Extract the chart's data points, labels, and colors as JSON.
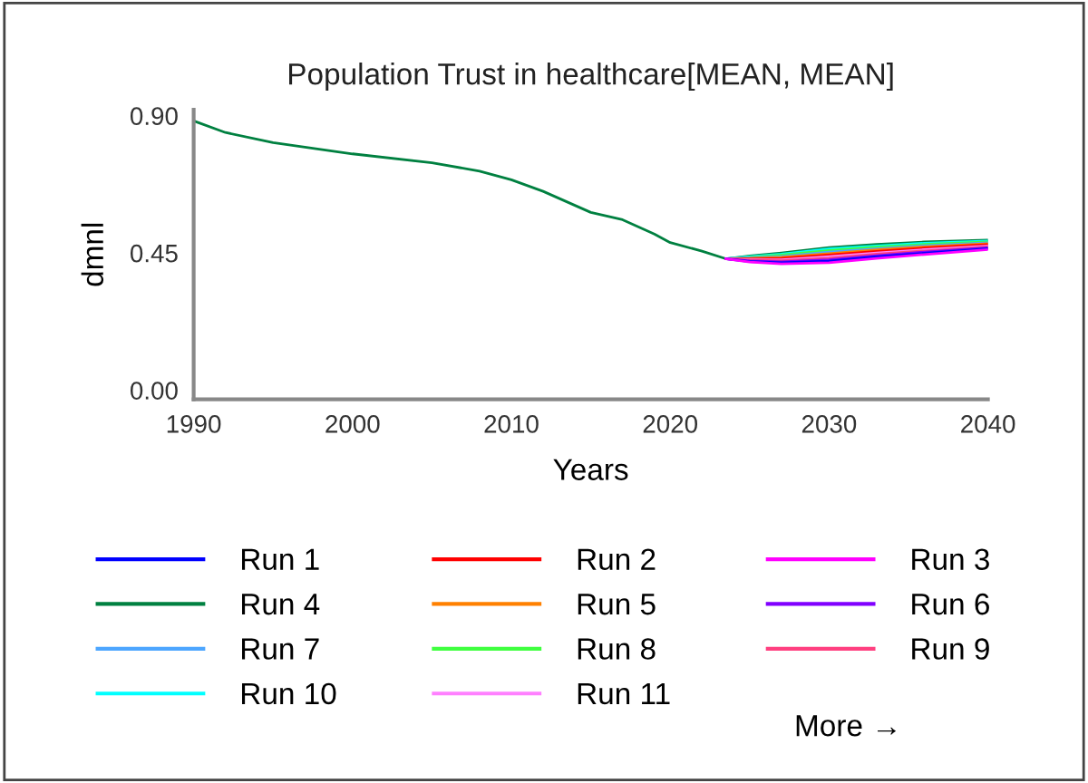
{
  "chart_data": {
    "type": "line",
    "title": "Population Trust in healthcare[MEAN, MEAN]",
    "xlabel": "Years",
    "ylabel": "dmnl",
    "x": [
      1990,
      1992,
      1995,
      2000,
      2005,
      2008,
      2010,
      2012,
      2015,
      2017,
      2019,
      2020,
      2022,
      2023.5,
      2025,
      2027,
      2030,
      2033,
      2036,
      2040
    ],
    "xlim": [
      1990,
      2040
    ],
    "xticks": [
      1990,
      2000,
      2010,
      2020,
      2030,
      2040
    ],
    "ylim": [
      -0.03,
      0.92
    ],
    "yticks": [
      {
        "value": 0.0,
        "label": "0.00"
      },
      {
        "value": 0.45,
        "label": "0.45"
      },
      {
        "value": 0.9,
        "label": "0.90"
      }
    ],
    "grid": false,
    "legend": "bottom",
    "line_style": "solid",
    "marker": "none",
    "annotations": [
      "More →"
    ],
    "series": [
      {
        "name": "Run 1",
        "color": "#0000ff",
        "values": [
          null,
          null,
          null,
          null,
          null,
          null,
          null,
          null,
          null,
          null,
          null,
          null,
          null,
          0.431,
          0.422,
          0.418,
          0.423,
          0.437,
          0.449,
          0.464
        ]
      },
      {
        "name": "Run 2",
        "color": "#ff0000",
        "values": [
          null,
          null,
          null,
          null,
          null,
          null,
          null,
          null,
          null,
          null,
          null,
          null,
          null,
          0.431,
          0.43,
          0.432,
          0.443,
          0.455,
          0.466,
          0.477
        ]
      },
      {
        "name": "Run 3",
        "color": "#ff00ff",
        "values": [
          null,
          null,
          null,
          null,
          null,
          null,
          null,
          null,
          null,
          null,
          null,
          null,
          null,
          0.431,
          0.42,
          0.414,
          0.418,
          0.432,
          0.445,
          0.461
        ]
      },
      {
        "name": "Run 4",
        "color": "#008040",
        "values": [
          0.883,
          0.845,
          0.812,
          0.775,
          0.746,
          0.718,
          0.69,
          0.652,
          0.583,
          0.559,
          0.512,
          0.484,
          0.456,
          0.431,
          0.44,
          0.45,
          0.468,
          0.478,
          0.486,
          0.492
        ]
      },
      {
        "name": "Run 5",
        "color": "#ff8000",
        "values": [
          null,
          null,
          null,
          null,
          null,
          null,
          null,
          null,
          null,
          null,
          null,
          null,
          null,
          0.431,
          0.432,
          0.436,
          0.448,
          0.46,
          0.47,
          0.48
        ]
      },
      {
        "name": "Run 6",
        "color": "#8000ff",
        "values": [
          null,
          null,
          null,
          null,
          null,
          null,
          null,
          null,
          null,
          null,
          null,
          null,
          null,
          0.431,
          0.424,
          0.421,
          0.428,
          0.441,
          0.453,
          0.467
        ]
      },
      {
        "name": "Run 7",
        "color": "#4da6ff",
        "values": [
          null,
          null,
          null,
          null,
          null,
          null,
          null,
          null,
          null,
          null,
          null,
          null,
          null,
          0.431,
          0.434,
          0.439,
          0.453,
          0.464,
          0.474,
          0.483
        ]
      },
      {
        "name": "Run 8",
        "color": "#40ff40",
        "values": [
          null,
          null,
          null,
          null,
          null,
          null,
          null,
          null,
          null,
          null,
          null,
          null,
          null,
          0.431,
          0.436,
          0.443,
          0.458,
          0.469,
          0.478,
          0.486
        ]
      },
      {
        "name": "Run 9",
        "color": "#ff4080",
        "values": [
          null,
          null,
          null,
          null,
          null,
          null,
          null,
          null,
          null,
          null,
          null,
          null,
          null,
          0.431,
          0.426,
          0.425,
          0.433,
          0.446,
          0.457,
          0.47
        ]
      },
      {
        "name": "Run 10",
        "color": "#00ffff",
        "values": [
          null,
          null,
          null,
          null,
          null,
          null,
          null,
          null,
          null,
          null,
          null,
          null,
          null,
          0.431,
          0.438,
          0.446,
          0.463,
          0.473,
          0.482,
          0.489
        ]
      },
      {
        "name": "Run 11",
        "color": "#ff80ff",
        "values": [
          null,
          null,
          null,
          null,
          null,
          null,
          null,
          null,
          null,
          null,
          null,
          null,
          null,
          0.431,
          0.428,
          0.428,
          0.438,
          0.45,
          0.461,
          0.473
        ]
      }
    ]
  }
}
